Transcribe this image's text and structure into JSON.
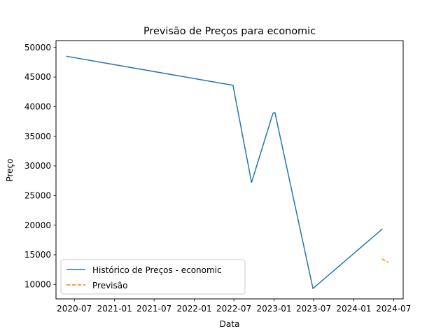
{
  "chart_data": {
    "type": "line",
    "title": "Previsão de Preços para economic",
    "xlabel": "Data",
    "ylabel": "Preço",
    "x_type": "date",
    "xlim": [
      "2020-04-08",
      "2024-08-14"
    ],
    "ylim": [
      7550,
      51150
    ],
    "x_ticks": [
      {
        "date": "2020-07-01",
        "label": "2020-07"
      },
      {
        "date": "2021-01-01",
        "label": "2021-01"
      },
      {
        "date": "2021-07-01",
        "label": "2021-07"
      },
      {
        "date": "2022-01-01",
        "label": "2022-01"
      },
      {
        "date": "2022-07-01",
        "label": "2022-07"
      },
      {
        "date": "2023-01-01",
        "label": "2023-01"
      },
      {
        "date": "2023-07-01",
        "label": "2023-07"
      },
      {
        "date": "2024-01-01",
        "label": "2024-01"
      },
      {
        "date": "2024-07-01",
        "label": "2024-07"
      }
    ],
    "y_ticks": [
      10000,
      15000,
      20000,
      25000,
      30000,
      35000,
      40000,
      45000,
      50000
    ],
    "grid": false,
    "legend_position": "lower-left",
    "series": [
      {
        "name": "Histórico de Preços - economic",
        "color": "#1f77b4",
        "style": "solid",
        "points": [
          {
            "x": "2020-05-27",
            "y": 48500
          },
          {
            "x": "2022-06-27",
            "y": 43600
          },
          {
            "x": "2022-09-20",
            "y": 27200
          },
          {
            "x": "2022-12-27",
            "y": 38900
          },
          {
            "x": "2023-01-05",
            "y": 39000
          },
          {
            "x": "2023-06-28",
            "y": 9300
          },
          {
            "x": "2024-05-09",
            "y": 19300
          }
        ]
      },
      {
        "name": "Previsão",
        "color": "#ff7f0e",
        "style": "dashed",
        "points": [
          {
            "x": "2024-05-09",
            "y": 14300
          },
          {
            "x": "2024-06-08",
            "y": 13700
          }
        ]
      }
    ]
  }
}
